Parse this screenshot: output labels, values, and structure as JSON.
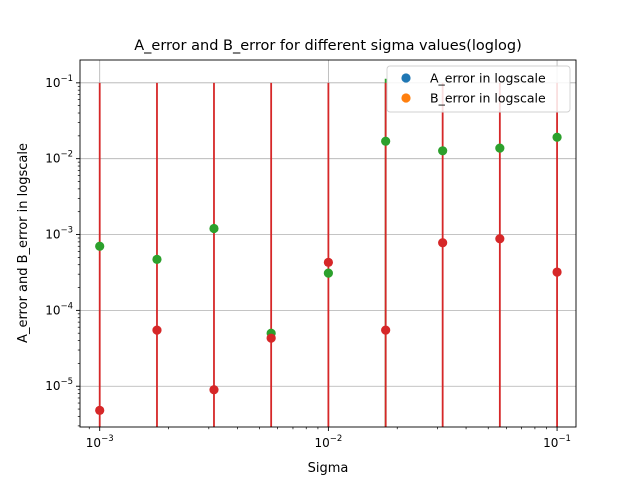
{
  "chart_data": {
    "type": "scatter",
    "title": "A_error and B_error for different sigma values(loglog)",
    "xlabel": "Sigma",
    "ylabel": "A_error and B_error in logscale",
    "xscale": "log",
    "yscale": "log",
    "xlim": [
      0.00082,
      0.121
    ],
    "ylim": [
      2.9e-06,
      0.2
    ],
    "grid": true,
    "legend_position": "upper right",
    "x_ticks": [
      {
        "value": 0.001,
        "base": "10",
        "exp": "−3"
      },
      {
        "value": 0.01,
        "base": "10",
        "exp": "−2"
      },
      {
        "value": 0.1,
        "base": "10",
        "exp": "−1"
      }
    ],
    "y_ticks": [
      {
        "value": 1e-05,
        "base": "10",
        "exp": "−5"
      },
      {
        "value": 0.0001,
        "base": "10",
        "exp": "−4"
      },
      {
        "value": 0.001,
        "base": "10",
        "exp": "−3"
      },
      {
        "value": 0.01,
        "base": "10",
        "exp": "−2"
      },
      {
        "value": 0.1,
        "base": "10",
        "exp": "−1"
      }
    ],
    "x": [
      0.001,
      0.00178,
      0.00316,
      0.00562,
      0.01,
      0.0178,
      0.0316,
      0.0562,
      0.1
    ],
    "series": [
      {
        "name": "A_error in logscale",
        "color": "#1f77b4",
        "values": [
          0.0007,
          0.00047,
          0.0012,
          5e-05,
          0.00031,
          0.017,
          0.0127,
          0.0138,
          0.0192
        ]
      },
      {
        "name": "B_error in logscale",
        "color": "#ff7f0e",
        "values": [
          4.8e-06,
          5.5e-05,
          9e-06,
          4.3e-05,
          0.00043,
          5.5e-05,
          0.00078,
          0.00088,
          0.00032
        ]
      }
    ],
    "overlay_colors": {
      "A_marker_and_stem": "#2ca02c",
      "B_marker_and_stem": "#d62728"
    },
    "stem_top": 0.1,
    "stem_top_highlight": {
      "index": 5,
      "value": 0.113
    }
  }
}
